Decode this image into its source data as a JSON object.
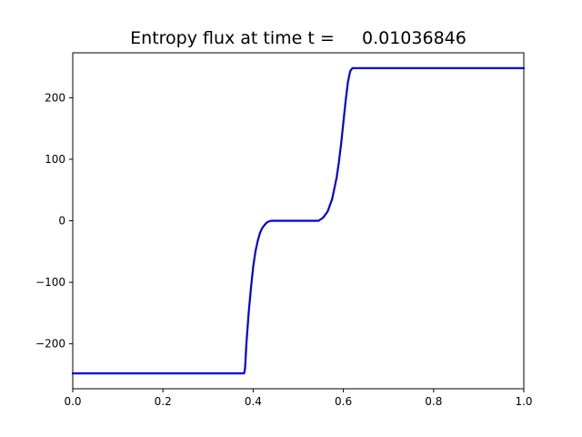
{
  "chart_data": {
    "type": "line",
    "title": "Entropy flux at time t =     0.01036846",
    "xlabel": "",
    "ylabel": "",
    "xlim": [
      0.0,
      1.0
    ],
    "ylim": [
      -273,
      273
    ],
    "x_ticks": [
      0.0,
      0.2,
      0.4,
      0.6,
      0.8,
      1.0
    ],
    "x_tick_labels": [
      "0.0",
      "0.2",
      "0.4",
      "0.6",
      "0.8",
      "1.0"
    ],
    "y_ticks": [
      -200,
      -100,
      0,
      100,
      200
    ],
    "y_tick_labels": [
      "−200",
      "−100",
      "0",
      "100",
      "200"
    ],
    "grid": false,
    "legend": "none",
    "series": [
      {
        "color": "#0000dd",
        "x": [
          0.0,
          0.38,
          0.382,
          0.385,
          0.39,
          0.395,
          0.4,
          0.405,
          0.41,
          0.415,
          0.42,
          0.425,
          0.43,
          0.435,
          0.44,
          0.445,
          0.45,
          0.47,
          0.5,
          0.53,
          0.545,
          0.555,
          0.565,
          0.575,
          0.585,
          0.59,
          0.595,
          0.6,
          0.605,
          0.61,
          0.615,
          0.62,
          0.625,
          0.7,
          0.8,
          1.0
        ],
        "y": [
          -248,
          -248,
          -240,
          -200,
          -150,
          -110,
          -75,
          -50,
          -33,
          -20,
          -12,
          -7,
          -3,
          -1,
          0,
          0,
          0,
          0,
          0,
          0,
          0,
          5,
          15,
          35,
          70,
          95,
          125,
          160,
          195,
          225,
          243,
          248,
          248,
          248,
          248,
          248
        ]
      }
    ]
  }
}
